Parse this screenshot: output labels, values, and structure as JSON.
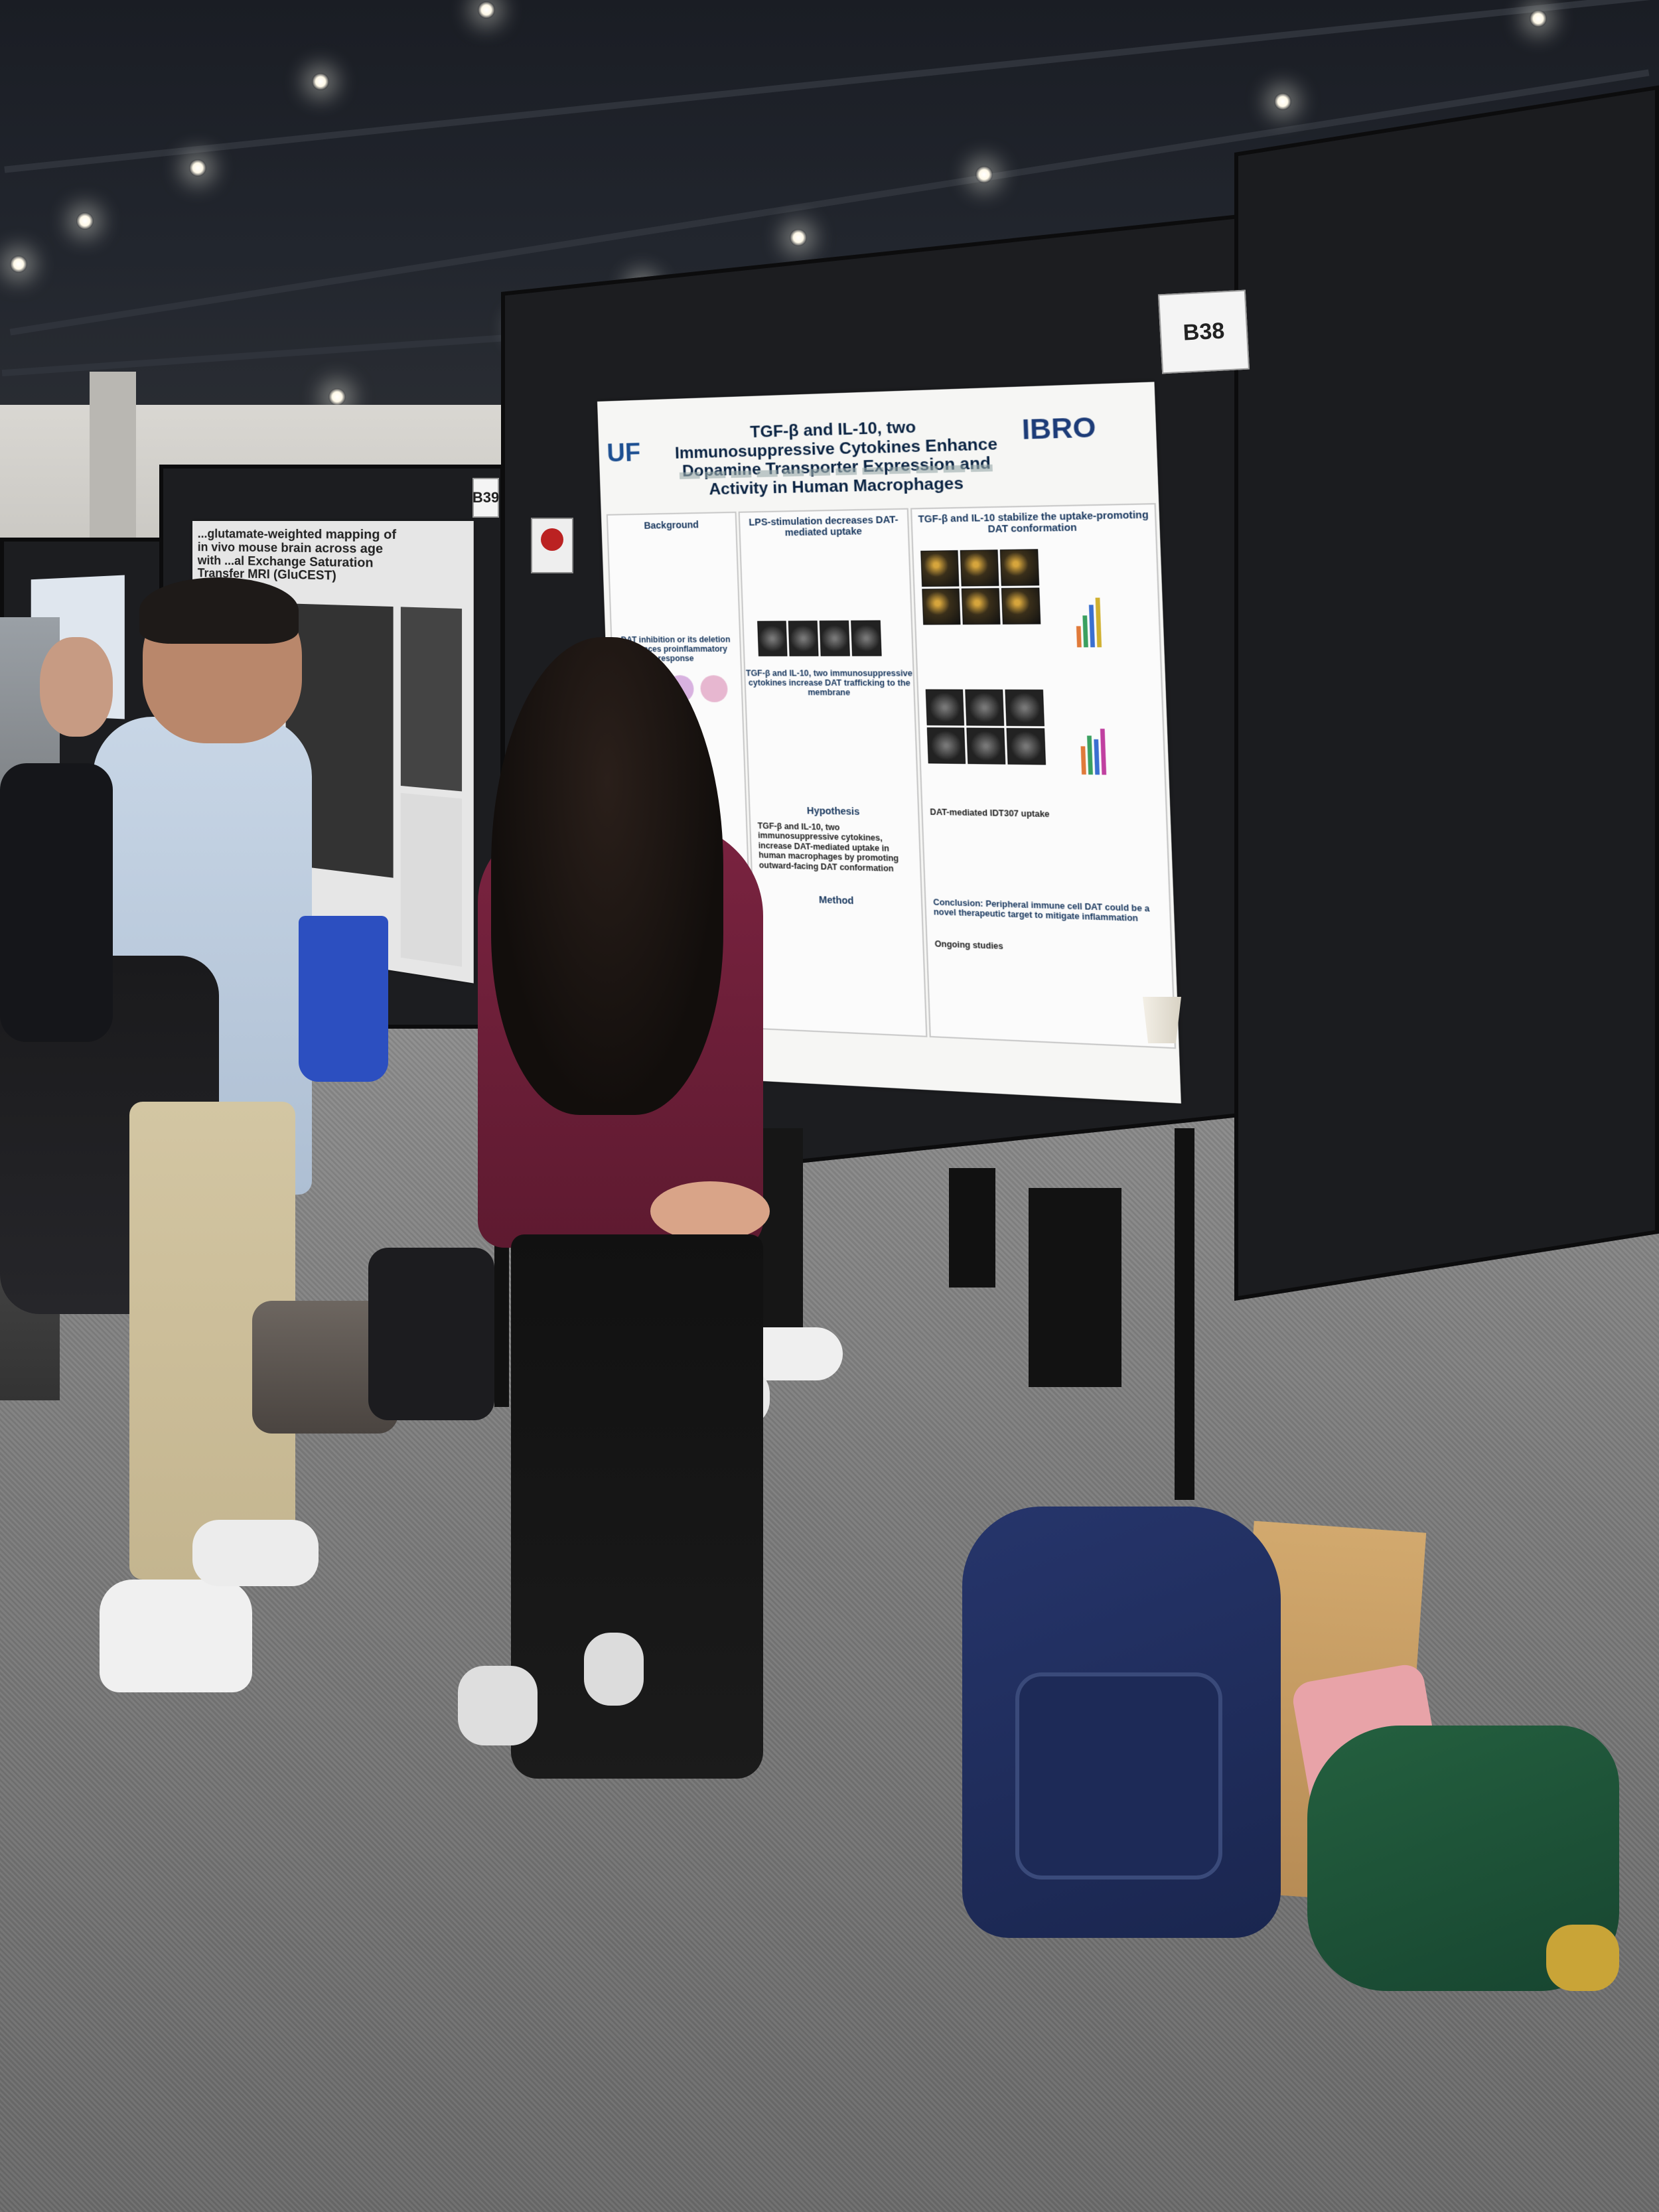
{
  "scene": {
    "description_tags": [
      "poster-session",
      "conference-hall"
    ]
  },
  "board_labels": {
    "main": "B38",
    "left": "B39"
  },
  "main_poster": {
    "title": "TGF-β and IL-10, two Immunosuppressive Cytokines Enhance Dopamine Transporter Expression and Activity in Human Macrophages",
    "logo_left": "UF",
    "logo_right": "IBRO",
    "sections": {
      "background": "Background",
      "lps": "LPS-stimulation decreases DAT-mediated uptake",
      "stabilize": "TGF-β and IL-10 stabilize the uptake-promoting DAT conformation",
      "dat_inhibition": "DAT inhibition or its deletion enhances proinflammatory response",
      "trafficking": "TGF-β and IL-10, two immunosuppressive cytokines increase DAT trafficking to the membrane",
      "hypothesis": "Hypothesis",
      "hypothesis_text": "TGF-β and IL-10, two immunosuppressive cytokines, increase DAT-mediated uptake in human macrophages by promoting outward-facing DAT conformation",
      "method": "Method",
      "dat_uptake": "DAT-mediated IDT307 uptake",
      "conclusion": "Conclusion: Peripheral immune cell DAT could be a novel therapeutic target to mitigate inflammation",
      "ongoing": "Ongoing studies"
    }
  },
  "left_poster": {
    "title": "...glutamate-weighted mapping of in vivo mouse brain across age with ...al Exchange Saturation Transfer MRI (GluCEST)"
  },
  "colors": {
    "board": "#1c1d20",
    "poster_title": "#0a2342",
    "shirt_woman": "#6e1f35",
    "backpack": "#1f2c5a",
    "green_bag": "#1f5a3a"
  }
}
